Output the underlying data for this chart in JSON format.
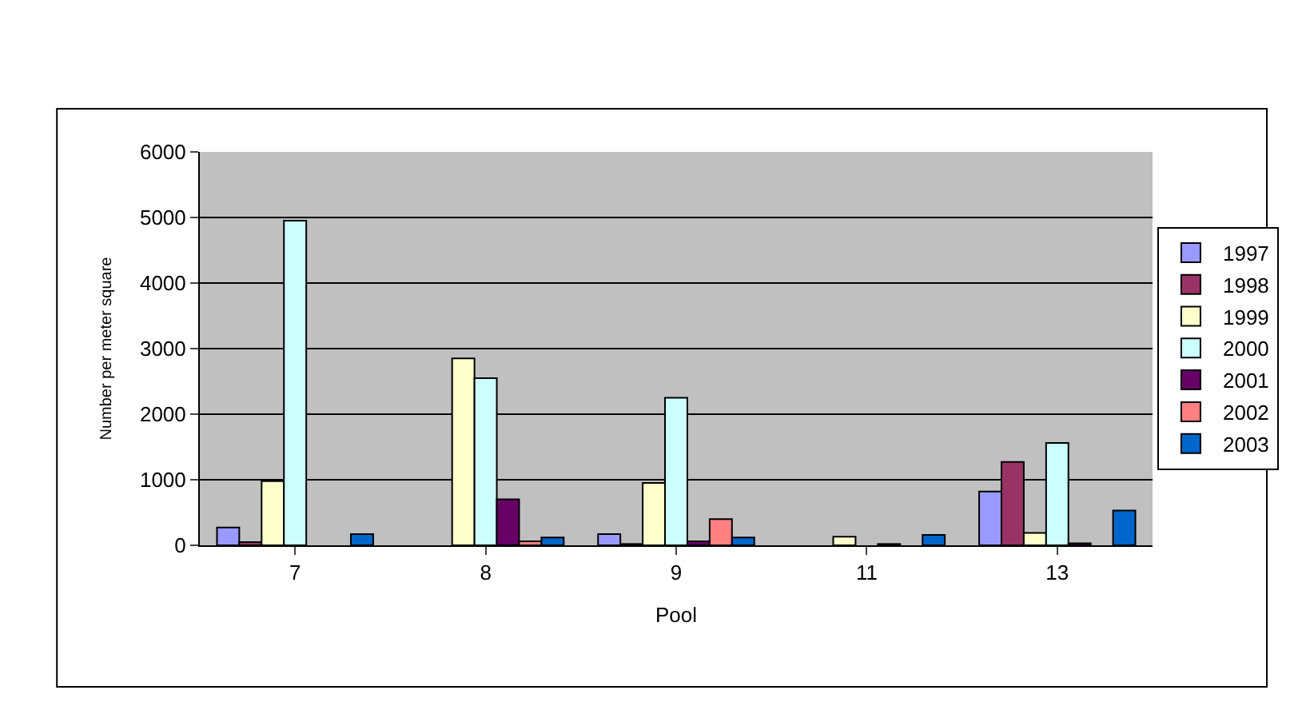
{
  "chart_data": {
    "type": "bar",
    "xlabel": "Pool",
    "ylabel": "Number per meter square",
    "categories": [
      "7",
      "8",
      "9",
      "11",
      "13"
    ],
    "series": [
      {
        "name": "1997",
        "color": "#9999ff",
        "values": [
          270,
          null,
          170,
          null,
          820
        ]
      },
      {
        "name": "1998",
        "color": "#993366",
        "values": [
          50,
          null,
          20,
          null,
          1270
        ]
      },
      {
        "name": "1999",
        "color": "#ffffcc",
        "values": [
          980,
          2850,
          950,
          130,
          190
        ]
      },
      {
        "name": "2000",
        "color": "#ccffff",
        "values": [
          4950,
          2550,
          2250,
          null,
          1560
        ]
      },
      {
        "name": "2001",
        "color": "#660066",
        "values": [
          null,
          700,
          60,
          20,
          30
        ]
      },
      {
        "name": "2002",
        "color": "#ff8080",
        "values": [
          null,
          60,
          400,
          null,
          null
        ]
      },
      {
        "name": "2003",
        "color": "#0066cc",
        "values": [
          170,
          120,
          120,
          160,
          530
        ]
      }
    ],
    "ylim": [
      0,
      6000
    ],
    "yticks": [
      0,
      1000,
      2000,
      3000,
      4000,
      5000,
      6000
    ],
    "grid": "y",
    "legend": "right"
  }
}
